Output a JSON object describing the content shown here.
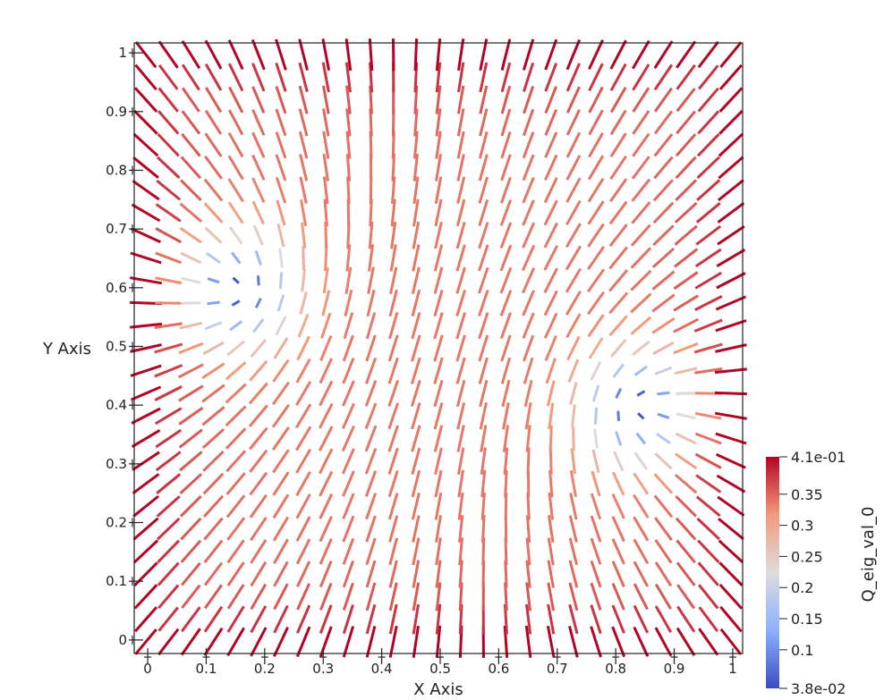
{
  "chart_data": {
    "type": "heatmap",
    "subtype": "nematic director glyph field with two +1/2 defects",
    "xlabel": "X Axis",
    "ylabel": "Y Axis",
    "xlim": [
      -0.02,
      1.02
    ],
    "ylim": [
      -0.02,
      1.02
    ],
    "x_ticks": [
      "0",
      "0.1",
      "0.2",
      "0.3",
      "0.4",
      "0.5",
      "0.6",
      "0.7",
      "0.8",
      "0.9",
      "1"
    ],
    "y_ticks": [
      "0",
      "0.1",
      "0.2",
      "0.3",
      "0.4",
      "0.5",
      "0.6",
      "0.7",
      "0.8",
      "0.9",
      "1"
    ],
    "grid_n": 27,
    "defects": [
      {
        "x": 0.16,
        "y": 0.6,
        "charge": 0.5,
        "opening": "left"
      },
      {
        "x": 0.84,
        "y": 0.4,
        "charge": 0.5,
        "opening": "right"
      }
    ],
    "colorbar": {
      "title": "Q_eig_val_0",
      "min": 0.038,
      "max": 0.41,
      "min_label": "3.8e-02",
      "max_label": "4.1e-01",
      "tick_values": [
        0.35,
        0.3,
        0.25,
        0.2,
        0.15,
        0.1
      ],
      "tick_labels": [
        "0.35",
        "0.3",
        "0.25",
        "0.2",
        "0.15",
        "0.1"
      ],
      "colormap": "cool-to-warm",
      "low_color": "#3b4cc0",
      "mid_color": "#dddddd",
      "high_color": "#b40426"
    }
  }
}
